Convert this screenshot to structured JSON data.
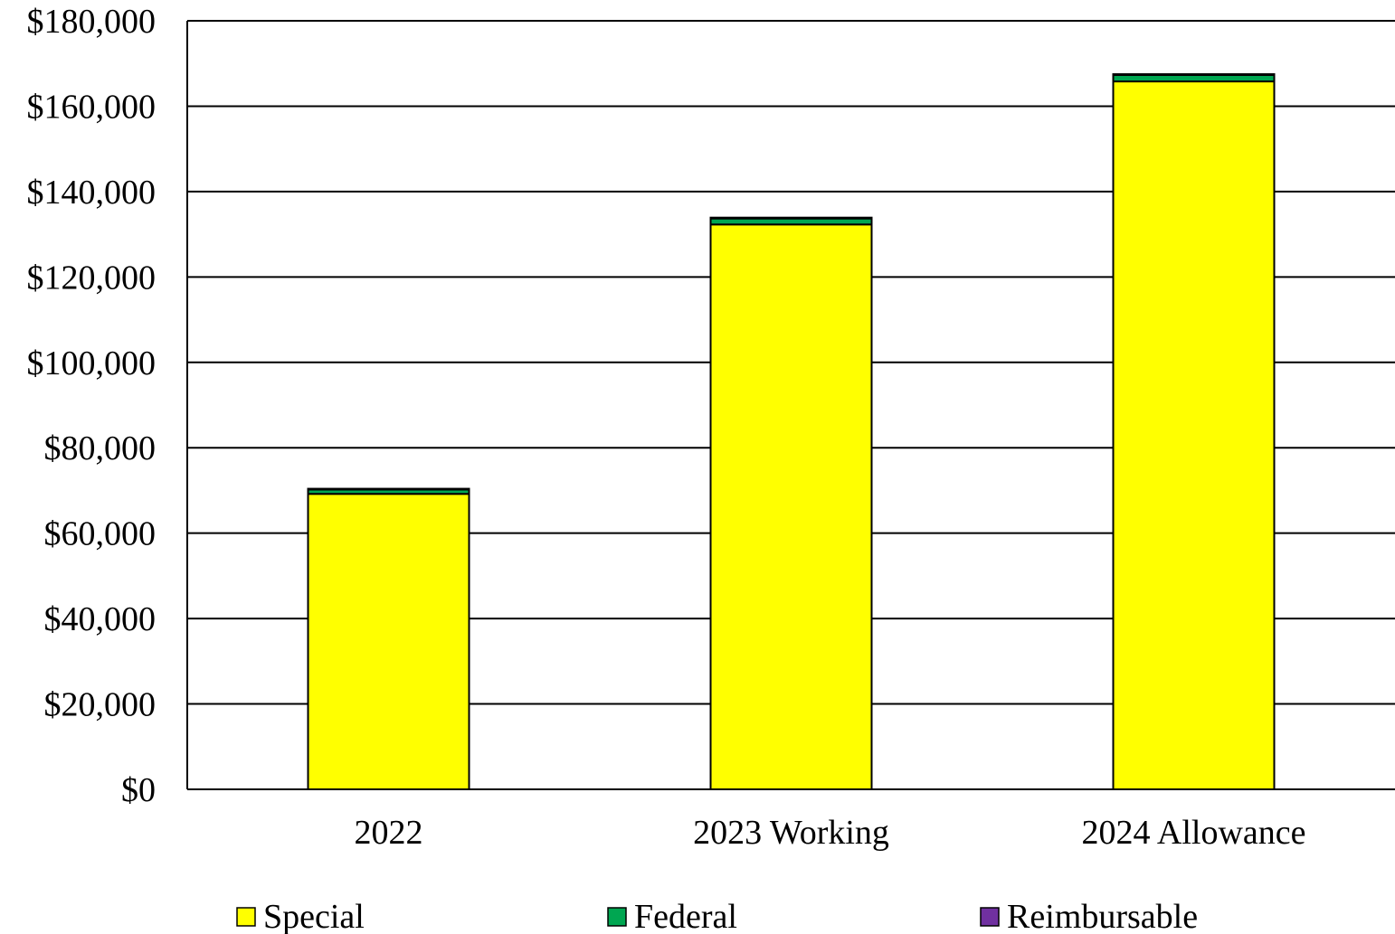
{
  "chart_data": {
    "type": "bar",
    "stacked": true,
    "categories": [
      "2022",
      "2023 Working",
      "2024 Allowance"
    ],
    "series": [
      {
        "name": "Special",
        "color": "#ffff00",
        "values": [
          69200,
          132300,
          165800
        ]
      },
      {
        "name": "Federal",
        "color": "#00a651",
        "values": [
          1000,
          1400,
          1500
        ]
      },
      {
        "name": "Reimbursable",
        "color": "#7030a0",
        "values": [
          200,
          200,
          200
        ]
      }
    ],
    "ylim": [
      0,
      180000
    ],
    "yticks": [
      0,
      20000,
      40000,
      60000,
      80000,
      100000,
      120000,
      140000,
      160000,
      180000
    ],
    "ytick_labels": [
      "$0",
      "$20,000",
      "$40,000",
      "$60,000",
      "$80,000",
      "$100,000",
      "$120,000",
      "$140,000",
      "$160,000",
      "$180,000"
    ],
    "grid": true,
    "legend_position": "bottom"
  }
}
